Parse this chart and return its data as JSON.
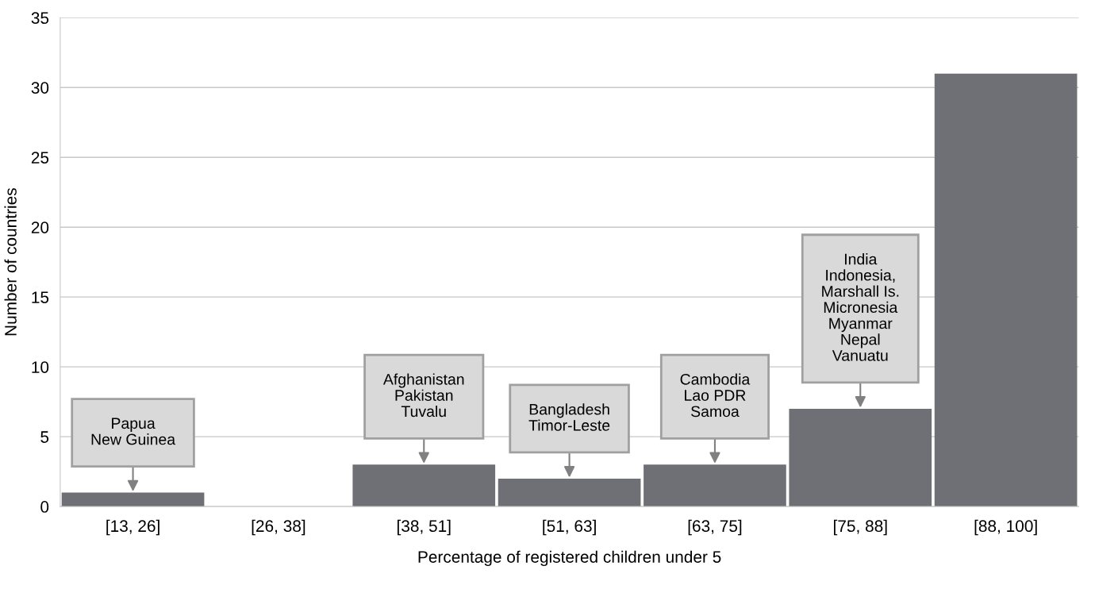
{
  "chart_data": {
    "type": "bar",
    "xlabel": "Percentage of registered children under 5",
    "ylabel": "Number of countries",
    "categories": [
      "[13, 26]",
      "[26, 38]",
      "[38, 51]",
      "[51, 63]",
      "[63, 75]",
      "[75, 88]",
      "[88, 100]"
    ],
    "values": [
      1,
      0,
      3,
      2,
      3,
      7,
      31
    ],
    "color": "#6e7075",
    "ylim": [
      0,
      35
    ],
    "yticks": [
      0,
      5,
      10,
      15,
      20,
      25,
      30,
      35
    ],
    "grid": "y",
    "annotations": [
      {
        "text": "Papua\nNew Guinea",
        "x": "[13, 26]",
        "y": 1
      },
      {
        "text": "Afghanistan\nPakistan\nTuvalu",
        "x": "[38, 51]",
        "y": 3
      },
      {
        "text": "Bangladesh\nTimor-Leste",
        "x": "[51, 63]",
        "y": 2
      },
      {
        "text": "Cambodia\nLao PDR\nSamoa",
        "x": "[63, 75]",
        "y": 3
      },
      {
        "text": "India\nIndonesia,\nMarshall Is.\nMicronesia\nMyanmar\nNepal\nVanuatu",
        "x": "[75, 88]",
        "y": 7
      }
    ]
  }
}
